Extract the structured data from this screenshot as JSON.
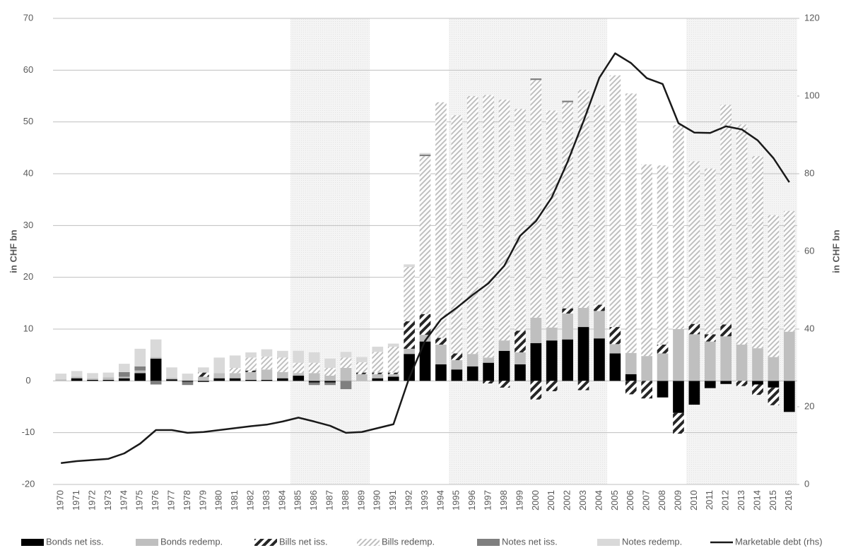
{
  "chart_data": {
    "type": "stacked-bar-line",
    "y_label": "in CHF bn",
    "y2_label": "in CHF bn",
    "categories": [
      "1970",
      "1971",
      "1972",
      "1973",
      "1974",
      "1975",
      "1976",
      "1977",
      "1978",
      "1979",
      "1980",
      "1981",
      "1982",
      "1983",
      "1984",
      "1985",
      "1986",
      "1987",
      "1988",
      "1989",
      "1990",
      "1991",
      "1992",
      "1993",
      "1994",
      "1995",
      "1996",
      "1997",
      "1998",
      "1999",
      "2000",
      "2001",
      "2002",
      "2003",
      "2004",
      "2005",
      "2006",
      "2007",
      "2008",
      "2009",
      "2010",
      "2011",
      "2012",
      "2013",
      "2014",
      "2015",
      "2016"
    ],
    "shaded_periods": [
      [
        "1985",
        "1989"
      ],
      [
        "1995",
        "2004"
      ],
      [
        "2010",
        "2016"
      ]
    ],
    "ylim": [
      -20,
      70
    ],
    "yticks": [
      -20,
      -10,
      0,
      10,
      20,
      30,
      40,
      50,
      60,
      70
    ],
    "y2lim": [
      0,
      120
    ],
    "y2ticks": [
      0,
      20,
      40,
      60,
      80,
      100,
      120
    ],
    "grid": true,
    "series": [
      {
        "name": "Bonds net iss.",
        "color": "#000000",
        "pattern": "solid",
        "values": [
          0,
          0.5,
          0.2,
          0.2,
          0.5,
          1.5,
          4.3,
          0.3,
          -0.2,
          -0.2,
          0.5,
          0.5,
          0.2,
          0.2,
          0.5,
          1.0,
          -0.3,
          -0.3,
          0,
          0,
          0.5,
          0.8,
          5.2,
          7.6,
          3.2,
          2.2,
          2.8,
          3.5,
          5.8,
          3.2,
          7.3,
          7.8,
          8.0,
          10.4,
          8.2,
          5.3,
          1.3,
          0,
          -3.2,
          -6.2,
          -4.6,
          -1.4,
          -0.6,
          0,
          -0.7,
          -1.3,
          -6.0
        ]
      },
      {
        "name": "Bonds redemp.",
        "color": "#bfbfbf",
        "pattern": "solid",
        "values": [
          0.3,
          0.3,
          0.3,
          0.5,
          0.3,
          0.5,
          0.3,
          0.3,
          0.2,
          0.8,
          1.0,
          1.0,
          1.5,
          2.0,
          1.2,
          0.5,
          1.5,
          1.0,
          2.5,
          1.3,
          0.8,
          0.5,
          1.0,
          1.3,
          3.8,
          1.8,
          2.4,
          1.0,
          2.0,
          2.3,
          4.9,
          2.5,
          5.0,
          3.7,
          5.3,
          1.8,
          4.1,
          4.8,
          5.3,
          10.0,
          9.0,
          7.6,
          8.6,
          7.0,
          6.3,
          4.6,
          9.5
        ]
      },
      {
        "name": "Bills net iss.",
        "color": "#262626",
        "pattern": "bold-diagonal",
        "values": [
          0,
          0,
          0,
          0,
          0,
          0,
          0,
          0,
          0,
          0.8,
          0,
          0,
          0.3,
          0,
          0,
          0,
          0,
          0,
          0,
          0.3,
          0.3,
          0.3,
          5.3,
          4.0,
          1.3,
          1.3,
          0,
          -0.5,
          -1.3,
          4.2,
          -3.6,
          -2.0,
          1.0,
          -1.8,
          1.2,
          3.3,
          -2.6,
          -3.4,
          1.7,
          -4.0,
          2.0,
          1.4,
          2.3,
          -1.0,
          -2.0,
          -3.4,
          0
        ]
      },
      {
        "name": "Bills redemp.",
        "color": "#bfbfbf",
        "pattern": "light-diagonal",
        "values": [
          0,
          0,
          0,
          0,
          0,
          0,
          0,
          0,
          0,
          0,
          0,
          1.0,
          2.5,
          2.5,
          2.8,
          2.0,
          2.0,
          1.5,
          2.0,
          2.0,
          4.0,
          5.0,
          10.5,
          30.5,
          45.5,
          46.0,
          49.8,
          50.7,
          46.5,
          42.8,
          45.9,
          41.9,
          39.8,
          42.1,
          38.5,
          48.6,
          50.1,
          37.0,
          34.6,
          39.4,
          31.4,
          32.0,
          42.4,
          42.5,
          37.1,
          27.4,
          23.3
        ]
      },
      {
        "name": "Notes net iss.",
        "color": "#7f7f7f",
        "pattern": "solid",
        "values": [
          0,
          0,
          0,
          0,
          0.9,
          0.8,
          -0.7,
          0,
          -0.6,
          0,
          0,
          0,
          0,
          0,
          0,
          0,
          -0.5,
          -0.5,
          -1.6,
          0,
          0,
          0,
          0,
          0.3,
          0,
          0,
          0,
          0,
          0,
          0,
          0.3,
          0,
          0.3,
          0,
          0,
          0,
          0,
          0,
          0,
          0,
          0,
          0,
          0,
          0,
          0,
          0,
          0
        ]
      },
      {
        "name": "Notes redemp.",
        "color": "#d9d9d9",
        "pattern": "solid",
        "values": [
          1.1,
          1.1,
          1.0,
          0.9,
          1.6,
          3.4,
          3.4,
          2.0,
          1.2,
          1.0,
          3.0,
          2.4,
          1.0,
          1.4,
          1.3,
          2.3,
          2.0,
          1.8,
          1.1,
          1.0,
          1.0,
          0.6,
          0.5,
          0.3,
          0,
          0,
          0,
          0,
          0,
          0,
          0,
          0,
          0,
          0,
          0,
          0,
          0,
          0,
          0,
          0,
          0,
          0,
          0,
          0,
          0,
          0,
          0
        ]
      },
      {
        "name": "Marketable debt (rhs)",
        "color": "#1a1a1a",
        "axis": "y2",
        "kind": "line",
        "values": [
          5.5,
          6,
          6.3,
          6.6,
          8,
          10.5,
          14,
          14,
          13.3,
          13.5,
          14,
          14.5,
          15,
          15.4,
          16.2,
          17.2,
          16.2,
          15.1,
          13.3,
          13.5,
          14.5,
          15.5,
          27.5,
          37,
          42.5,
          45.5,
          48.8,
          51.8,
          56.3,
          64,
          67.8,
          73.9,
          83.1,
          93.5,
          104.7,
          111,
          108.5,
          104.6,
          103.1,
          93,
          90.6,
          90.5,
          92.2,
          91.4,
          88.6,
          84,
          77.8
        ]
      }
    ]
  }
}
